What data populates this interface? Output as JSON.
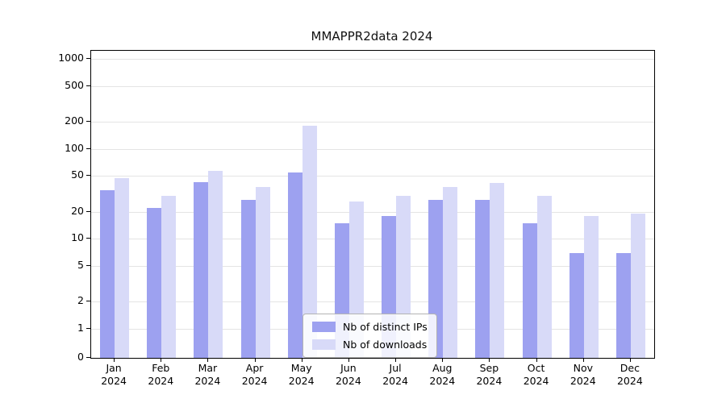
{
  "chart": {
    "title": "MMAPPR2data 2024",
    "year": "2024"
  },
  "chart_data": {
    "type": "bar",
    "title": "MMAPPR2data 2024",
    "xlabel": "",
    "ylabel": "",
    "yscale": "log",
    "ylim": [
      0,
      1000
    ],
    "yticks": [
      1000,
      500,
      200,
      100,
      50,
      20,
      10,
      5,
      2,
      1,
      0
    ],
    "grid": "horizontal",
    "legend_position": "bottom-center-inside",
    "categories": [
      "Jan",
      "Feb",
      "Mar",
      "Apr",
      "May",
      "Jun",
      "Jul",
      "Aug",
      "Sep",
      "Oct",
      "Nov",
      "Dec"
    ],
    "year": "2024",
    "series": [
      {
        "name": "Nb of distinct IPs",
        "color": "#9da1f0",
        "values": [
          35,
          22,
          43,
          27,
          55,
          15,
          18,
          27,
          27,
          15,
          7,
          7
        ]
      },
      {
        "name": "Nb of downloads",
        "color": "#d8daf8",
        "values": [
          47,
          30,
          57,
          38,
          180,
          26,
          30,
          38,
          42,
          30,
          18,
          19
        ]
      }
    ]
  }
}
